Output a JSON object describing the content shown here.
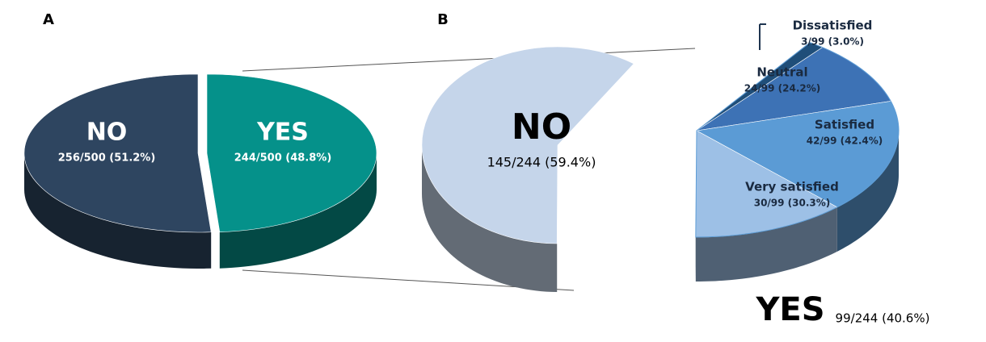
{
  "chart_data": [
    {
      "type": "pie",
      "title": "A",
      "categories": [
        "NO",
        "YES"
      ],
      "values": [
        51.2,
        48.8
      ],
      "value_labels": [
        "256/500 (51.2%)",
        "244/500 (48.8%)"
      ],
      "colors": [
        "#2e4560",
        "#05918a"
      ]
    },
    {
      "type": "pie",
      "title": "B",
      "categories": [
        "NO",
        "YES"
      ],
      "values": [
        59.4,
        40.6
      ],
      "value_labels": [
        "145/244 (59.4%)",
        "99/244 (40.6%)"
      ],
      "colors": [
        "#c5d5ea",
        "#5b9bd5"
      ]
    },
    {
      "type": "pie",
      "categories": [
        "Dissatisfied",
        "Neutral",
        "Satisfied",
        "Very satisfied"
      ],
      "values": [
        3.0,
        24.2,
        42.4,
        30.3
      ],
      "value_labels": [
        "3/99 (3.0%)",
        "24/99 (24.2%)",
        "42/99 (42.4%)",
        "30/99 (30.3%)"
      ],
      "colors": [
        "#1f4e79",
        "#3d72b5",
        "#5b9bd5",
        "#9dc0e6"
      ]
    }
  ]
}
